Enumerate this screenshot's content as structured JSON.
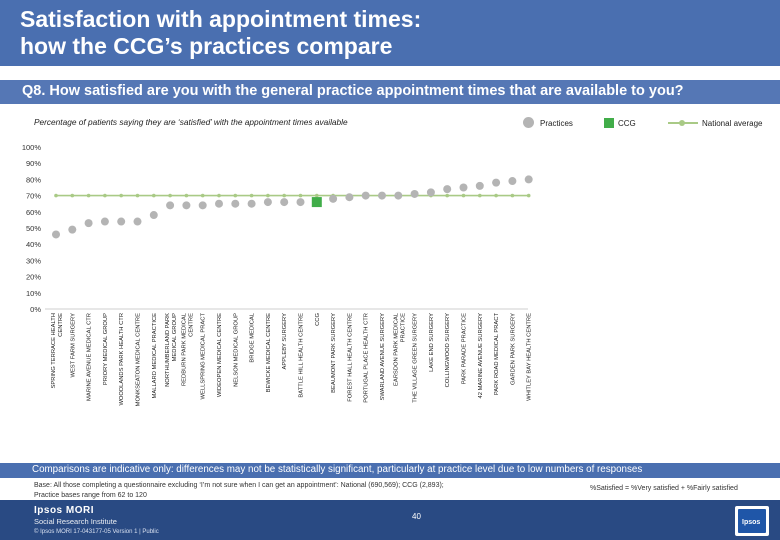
{
  "header": {
    "title": "Satisfaction with appointment times:\nhow the CCG’s practices compare"
  },
  "question": "Q8. How satisfied are you with the general practice appointment times that are available to you?",
  "subtitle": "Percentage of patients saying they are ‘satisfied’ with the appointment times available",
  "legend": {
    "practices": "Practices",
    "ccg": "CCG",
    "national": "National average"
  },
  "colors": {
    "header": "#4a6fb0",
    "practice_marker": "#b4b4b4",
    "ccg_marker": "#41ad49",
    "national_line": "#a9ca86",
    "footer": "#294a83"
  },
  "chart_data": {
    "type": "scatter",
    "title": "Percentage of patients saying they are ‘satisfied’ with the appointment times available",
    "ylabel": "",
    "xlabel": "",
    "ylim": [
      0,
      100
    ],
    "yticks": [
      "0%",
      "10%",
      "20%",
      "30%",
      "40%",
      "50%",
      "60%",
      "70%",
      "80%",
      "90%",
      "100%"
    ],
    "categories": [
      "SPRING TERRACE HEALTH CENTRE",
      "WEST FARM SURGERY",
      "MARINE AVENUE MEDICAL CTR",
      "PRIORY MEDICAL GROUP",
      "WOODLANDS PARK HEALTH CTR",
      "MONKSEATON MEDICAL CENTRE",
      "MALLARD MEDICAL PRACTICE",
      "NORTHUMBERLAND PARK MEDICAL GROUP",
      "REDBURN PARK MEDICAL CENTRE",
      "WELLSPRING MEDICAL PRACT",
      "WIDEOPEN MEDICAL CENTRE",
      "NELSON MEDICAL GROUP",
      "BRIDGE MEDICAL",
      "BEWICKE MEDICAL CENTRE",
      "APPLEBY SURGERY",
      "BATTLE HILL HEALTH CENTRE",
      "CCG",
      "BEAUMONT PARK SURGERY",
      "FOREST HALL HEALTH CENTRE",
      "PORTUGAL PLACE HEALTH CTR",
      "SWARLAND AVENUE SURGERY",
      "EARSDON PARK MEDICAL PRACTICE",
      "THE VILLAGE GREEN SURGERY",
      "LAKE END SURGERY",
      "COLLINGWOOD SURGERY",
      "PARK PARADE PRACTICE",
      "42 MARINE AVENUE SURGERY",
      "PARK ROAD MEDICAL PRACT",
      "GARDEN PARK SURGERY",
      "WHITLEY BAY HEALTH CENTRE"
    ],
    "series": [
      {
        "name": "Practices",
        "values": [
          46,
          49,
          53,
          54,
          54,
          54,
          58,
          64,
          64,
          64,
          65,
          65,
          65,
          66,
          66,
          66,
          null,
          68,
          69,
          70,
          70,
          70,
          71,
          72,
          74,
          75,
          76,
          78,
          79,
          80
        ]
      },
      {
        "name": "CCG",
        "values": [
          null,
          null,
          null,
          null,
          null,
          null,
          null,
          null,
          null,
          null,
          null,
          null,
          null,
          null,
          null,
          null,
          66,
          null,
          null,
          null,
          null,
          null,
          null,
          null,
          null,
          null,
          null,
          null,
          null,
          null
        ]
      },
      {
        "name": "National average",
        "values": [
          70,
          70,
          70,
          70,
          70,
          70,
          70,
          70,
          70,
          70,
          70,
          70,
          70,
          70,
          70,
          70,
          70,
          70,
          70,
          70,
          70,
          70,
          70,
          70,
          70,
          70,
          70,
          70,
          70,
          70
        ]
      }
    ]
  },
  "caveat": "Comparisons are indicative only: differences may not be statistically significant, particularly at practice level due to low numbers of responses",
  "base": {
    "line1": "Base: All those completing a questionnaire excluding ‘I’m not sure when I can get an appointment’: National (690,569); CCG (2,893);",
    "line2": "Practice bases range from 62 to 120"
  },
  "formula": "%Satisfied = %Very satisfied + %Fairly satisfied",
  "footer": {
    "logo_top": "Ipsos MORI",
    "logo_sub": "Social Research Institute",
    "copyright": "© Ipsos MORI      17-043177-05 Version 1 | Public",
    "page_number": "40",
    "badge": "Ipsos"
  }
}
